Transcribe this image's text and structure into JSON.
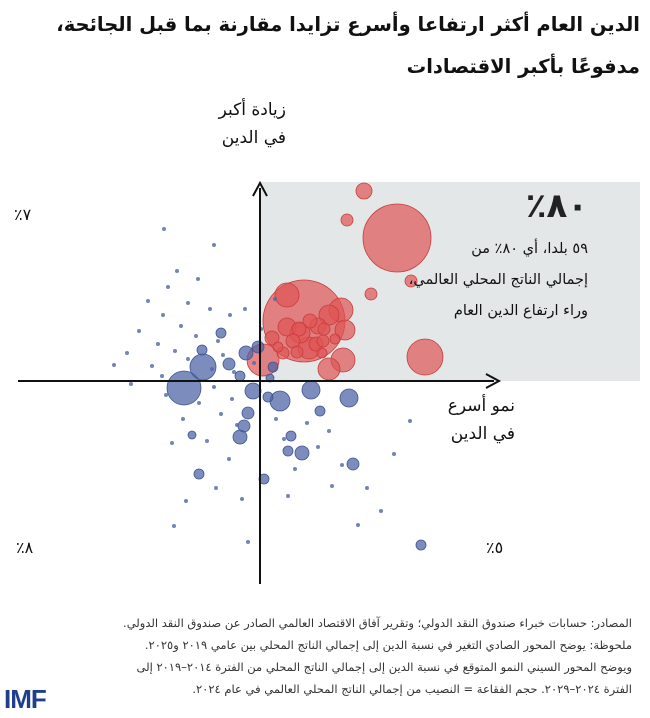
{
  "title": "الدين العام أكثر ارتفاعا وأسرع تزايدا مقارنة بما قبل الجائحة، مدفوعًا بأكبر الاقتصادات",
  "chart_data": {
    "type": "scatter",
    "title": "الدين العام أكثر ارتفاعا وأسرع تزايدا مقارنة بما قبل الجائحة، مدفوعًا بأكبر الاقتصادات",
    "ylabel": "زيادة أكبر في الدين",
    "xlabel": "نمو أسرع في الدين",
    "quadrant_shares": {
      "top_right": "٨٠٪",
      "top_left": "٧٪",
      "bottom_left": "٨٪",
      "bottom_right": "٥٪"
    },
    "callout": {
      "value": "٨٠٪",
      "lines": [
        "٥٩ بلدا، أي ٨٠٪ من",
        "إجمالي الناتج المحلي العالمي،",
        "وراء ارتفاع الدين العام"
      ]
    },
    "highlight_quadrant": "top-right",
    "colors": {
      "red": "#e05454",
      "blue": "#5066a6",
      "shade": "#e3e7e8"
    },
    "series": [
      {
        "color": "red",
        "points": [
          {
            "x": 1.04,
            "y": 1.9,
            "s": 7
          },
          {
            "x": 1.37,
            "y": 1.43,
            "s": 33
          },
          {
            "x": 0.87,
            "y": 1.61,
            "s": 5
          },
          {
            "x": 1.51,
            "y": 1.0,
            "s": 5
          },
          {
            "x": 1.11,
            "y": 0.87,
            "s": 5
          },
          {
            "x": 0.27,
            "y": 0.86,
            "s": 11
          },
          {
            "x": 0.44,
            "y": 0.6,
            "s": 40
          },
          {
            "x": 0.81,
            "y": 0.71,
            "s": 11
          },
          {
            "x": 0.69,
            "y": 0.66,
            "s": 9
          },
          {
            "x": 0.58,
            "y": 0.55,
            "s": 7
          },
          {
            "x": 0.5,
            "y": 0.6,
            "s": 6
          },
          {
            "x": 0.85,
            "y": 0.51,
            "s": 9
          },
          {
            "x": 0.27,
            "y": 0.54,
            "s": 8
          },
          {
            "x": 0.39,
            "y": 0.52,
            "s": 6
          },
          {
            "x": 0.4,
            "y": 0.48,
            "s": 9
          },
          {
            "x": 0.12,
            "y": 0.43,
            "s": 6
          },
          {
            "x": 0.33,
            "y": 0.4,
            "s": 6
          },
          {
            "x": 0.49,
            "y": 0.33,
            "s": 10
          },
          {
            "x": 0.56,
            "y": 0.37,
            "s": 6
          },
          {
            "x": 0.63,
            "y": 0.4,
            "s": 5
          },
          {
            "x": 0.75,
            "y": 0.42,
            "s": 4
          },
          {
            "x": 0.62,
            "y": 0.28,
            "s": 4
          },
          {
            "x": 0.37,
            "y": 0.29,
            "s": 5
          },
          {
            "x": 0.03,
            "y": 0.21,
            "s": 15
          },
          {
            "x": 0.18,
            "y": 0.34,
            "s": 4
          },
          {
            "x": 0.23,
            "y": 0.28,
            "s": 5
          },
          {
            "x": 0.69,
            "y": 0.12,
            "s": 10
          },
          {
            "x": 0.83,
            "y": 0.21,
            "s": 11
          },
          {
            "x": 1.65,
            "y": 0.24,
            "s": 17
          },
          {
            "x": 0.64,
            "y": 0.52,
            "s": 5
          }
        ]
      },
      {
        "color": "blue",
        "points": [
          {
            "x": -0.76,
            "y": -0.07,
            "s": 16
          },
          {
            "x": -0.57,
            "y": 0.14,
            "s": 12
          },
          {
            "x": -0.39,
            "y": 0.48,
            "s": 4
          },
          {
            "x": -0.58,
            "y": 0.31,
            "s": 4
          },
          {
            "x": -0.02,
            "y": 0.34,
            "s": 5
          },
          {
            "x": -0.14,
            "y": 0.28,
            "s": 6
          },
          {
            "x": -0.31,
            "y": 0.17,
            "s": 5
          },
          {
            "x": -0.2,
            "y": 0.05,
            "s": 4
          },
          {
            "x": 0.13,
            "y": 0.14,
            "s": 4
          },
          {
            "x": -0.07,
            "y": -0.1,
            "s": 7
          },
          {
            "x": 0.08,
            "y": -0.16,
            "s": 4
          },
          {
            "x": 0.2,
            "y": -0.2,
            "s": 9
          },
          {
            "x": -0.12,
            "y": -0.32,
            "s": 5
          },
          {
            "x": -0.16,
            "y": -0.45,
            "s": 5
          },
          {
            "x": -0.2,
            "y": -0.56,
            "s": 6
          },
          {
            "x": 0.31,
            "y": -0.55,
            "s": 4
          },
          {
            "x": 0.51,
            "y": -0.09,
            "s": 8
          },
          {
            "x": 0.6,
            "y": -0.3,
            "s": 4
          },
          {
            "x": 0.89,
            "y": -0.17,
            "s": 8
          },
          {
            "x": 0.42,
            "y": -0.72,
            "s": 6
          },
          {
            "x": 0.28,
            "y": -0.7,
            "s": 4
          },
          {
            "x": -0.61,
            "y": -0.93,
            "s": 4
          },
          {
            "x": 0.93,
            "y": -0.83,
            "s": 5
          },
          {
            "x": 0.04,
            "y": -0.98,
            "s": 4
          },
          {
            "x": 1.61,
            "y": -1.64,
            "s": 4
          },
          {
            "x": -0.68,
            "y": -0.54,
            "s": 3
          },
          {
            "x": 0.1,
            "y": 0.03,
            "s": 3
          }
        ]
      },
      {
        "color": "blue-small",
        "points": [
          {
            "x": -0.96,
            "y": 1.52,
            "s": 2
          },
          {
            "x": -0.46,
            "y": 1.36,
            "s": 2
          },
          {
            "x": -0.83,
            "y": 1.1,
            "s": 2
          },
          {
            "x": -0.62,
            "y": 1.02,
            "s": 2
          },
          {
            "x": -0.92,
            "y": 0.94,
            "s": 2
          },
          {
            "x": -1.12,
            "y": 0.8,
            "s": 2
          },
          {
            "x": -0.72,
            "y": 0.78,
            "s": 2
          },
          {
            "x": -0.5,
            "y": 0.72,
            "s": 2
          },
          {
            "x": -0.97,
            "y": 0.66,
            "s": 2
          },
          {
            "x": -0.3,
            "y": 0.66,
            "s": 2
          },
          {
            "x": -0.79,
            "y": 0.55,
            "s": 2
          },
          {
            "x": -1.21,
            "y": 0.5,
            "s": 2
          },
          {
            "x": -0.64,
            "y": 0.45,
            "s": 2
          },
          {
            "x": -0.42,
            "y": 0.4,
            "s": 2
          },
          {
            "x": -1.02,
            "y": 0.37,
            "s": 2
          },
          {
            "x": -0.85,
            "y": 0.3,
            "s": 2
          },
          {
            "x": -1.33,
            "y": 0.28,
            "s": 2
          },
          {
            "x": -0.37,
            "y": 0.26,
            "s": 2
          },
          {
            "x": -0.72,
            "y": 0.22,
            "s": 2
          },
          {
            "x": -1.08,
            "y": 0.15,
            "s": 2
          },
          {
            "x": -0.48,
            "y": 0.12,
            "s": 2
          },
          {
            "x": -0.26,
            "y": 0.09,
            "s": 2
          },
          {
            "x": -0.98,
            "y": 0.05,
            "s": 2
          },
          {
            "x": -0.06,
            "y": 0.18,
            "s": 2
          },
          {
            "x": -1.29,
            "y": -0.03,
            "s": 2
          },
          {
            "x": -0.46,
            "y": -0.06,
            "s": 2
          },
          {
            "x": -0.94,
            "y": -0.14,
            "s": 2
          },
          {
            "x": -0.28,
            "y": -0.18,
            "s": 2
          },
          {
            "x": -0.61,
            "y": -0.22,
            "s": 2
          },
          {
            "x": -0.39,
            "y": -0.33,
            "s": 2
          },
          {
            "x": -0.77,
            "y": -0.38,
            "s": 2
          },
          {
            "x": -0.23,
            "y": -0.44,
            "s": 2
          },
          {
            "x": -0.53,
            "y": -0.6,
            "s": 2
          },
          {
            "x": -0.88,
            "y": -0.62,
            "s": 2
          },
          {
            "x": -0.31,
            "y": -0.78,
            "s": 2
          },
          {
            "x": -0.44,
            "y": -1.07,
            "s": 2
          },
          {
            "x": -0.18,
            "y": -1.18,
            "s": 2
          },
          {
            "x": -0.74,
            "y": -1.2,
            "s": 2
          },
          {
            "x": -0.86,
            "y": -1.45,
            "s": 2
          },
          {
            "x": -0.12,
            "y": -1.61,
            "s": 2
          },
          {
            "x": 0.16,
            "y": -0.38,
            "s": 2
          },
          {
            "x": 0.24,
            "y": -0.58,
            "s": 2
          },
          {
            "x": 0.47,
            "y": -0.42,
            "s": 2
          },
          {
            "x": 0.35,
            "y": -0.88,
            "s": 2
          },
          {
            "x": 0.58,
            "y": -0.66,
            "s": 2
          },
          {
            "x": 0.69,
            "y": -0.5,
            "s": 2
          },
          {
            "x": 0.82,
            "y": -0.84,
            "s": 2
          },
          {
            "x": 0.72,
            "y": -1.05,
            "s": 2
          },
          {
            "x": 1.07,
            "y": -1.07,
            "s": 2
          },
          {
            "x": 1.21,
            "y": -1.3,
            "s": 2
          },
          {
            "x": 0.98,
            "y": -1.44,
            "s": 2
          },
          {
            "x": 0.28,
            "y": -1.15,
            "s": 2
          },
          {
            "x": 1.34,
            "y": -0.73,
            "s": 2
          },
          {
            "x": 1.5,
            "y": -0.4,
            "s": 2
          },
          {
            "x": -1.46,
            "y": 0.16,
            "s": 2
          },
          {
            "x": 0.15,
            "y": 0.82,
            "s": 2
          },
          {
            "x": -0.15,
            "y": 0.72,
            "s": 2
          },
          {
            "x": 0.01,
            "y": 0.52,
            "s": 2
          }
        ]
      }
    ]
  },
  "notes": {
    "source": "المصادر: حسابات خبراء صندوق النقد الدولي؛ وتقرير آفاق الاقتصاد العالمي الصادر عن صندوق النقد الدولي.",
    "note1": "ملحوظة: يوضح المحور الصادي التغير في نسبة الدين إلى إجمالي الناتج المحلي بين عامي ٢٠١٩ و٢٠٢٥.",
    "note2": "ويوضح المحور السيني النمو المتوقع في نسبة الدين إلى إجمالي الناتج المحلي من الفترة ٢٠١٤–٢٠١٩ إلى",
    "note3": "الفترة ٢٠٢٤–٢٠٢٩. حجم الفقاعة = النصيب من إجمالي الناتج المحلي العالمي في عام ٢٠٢٤."
  },
  "logo": "IMF"
}
